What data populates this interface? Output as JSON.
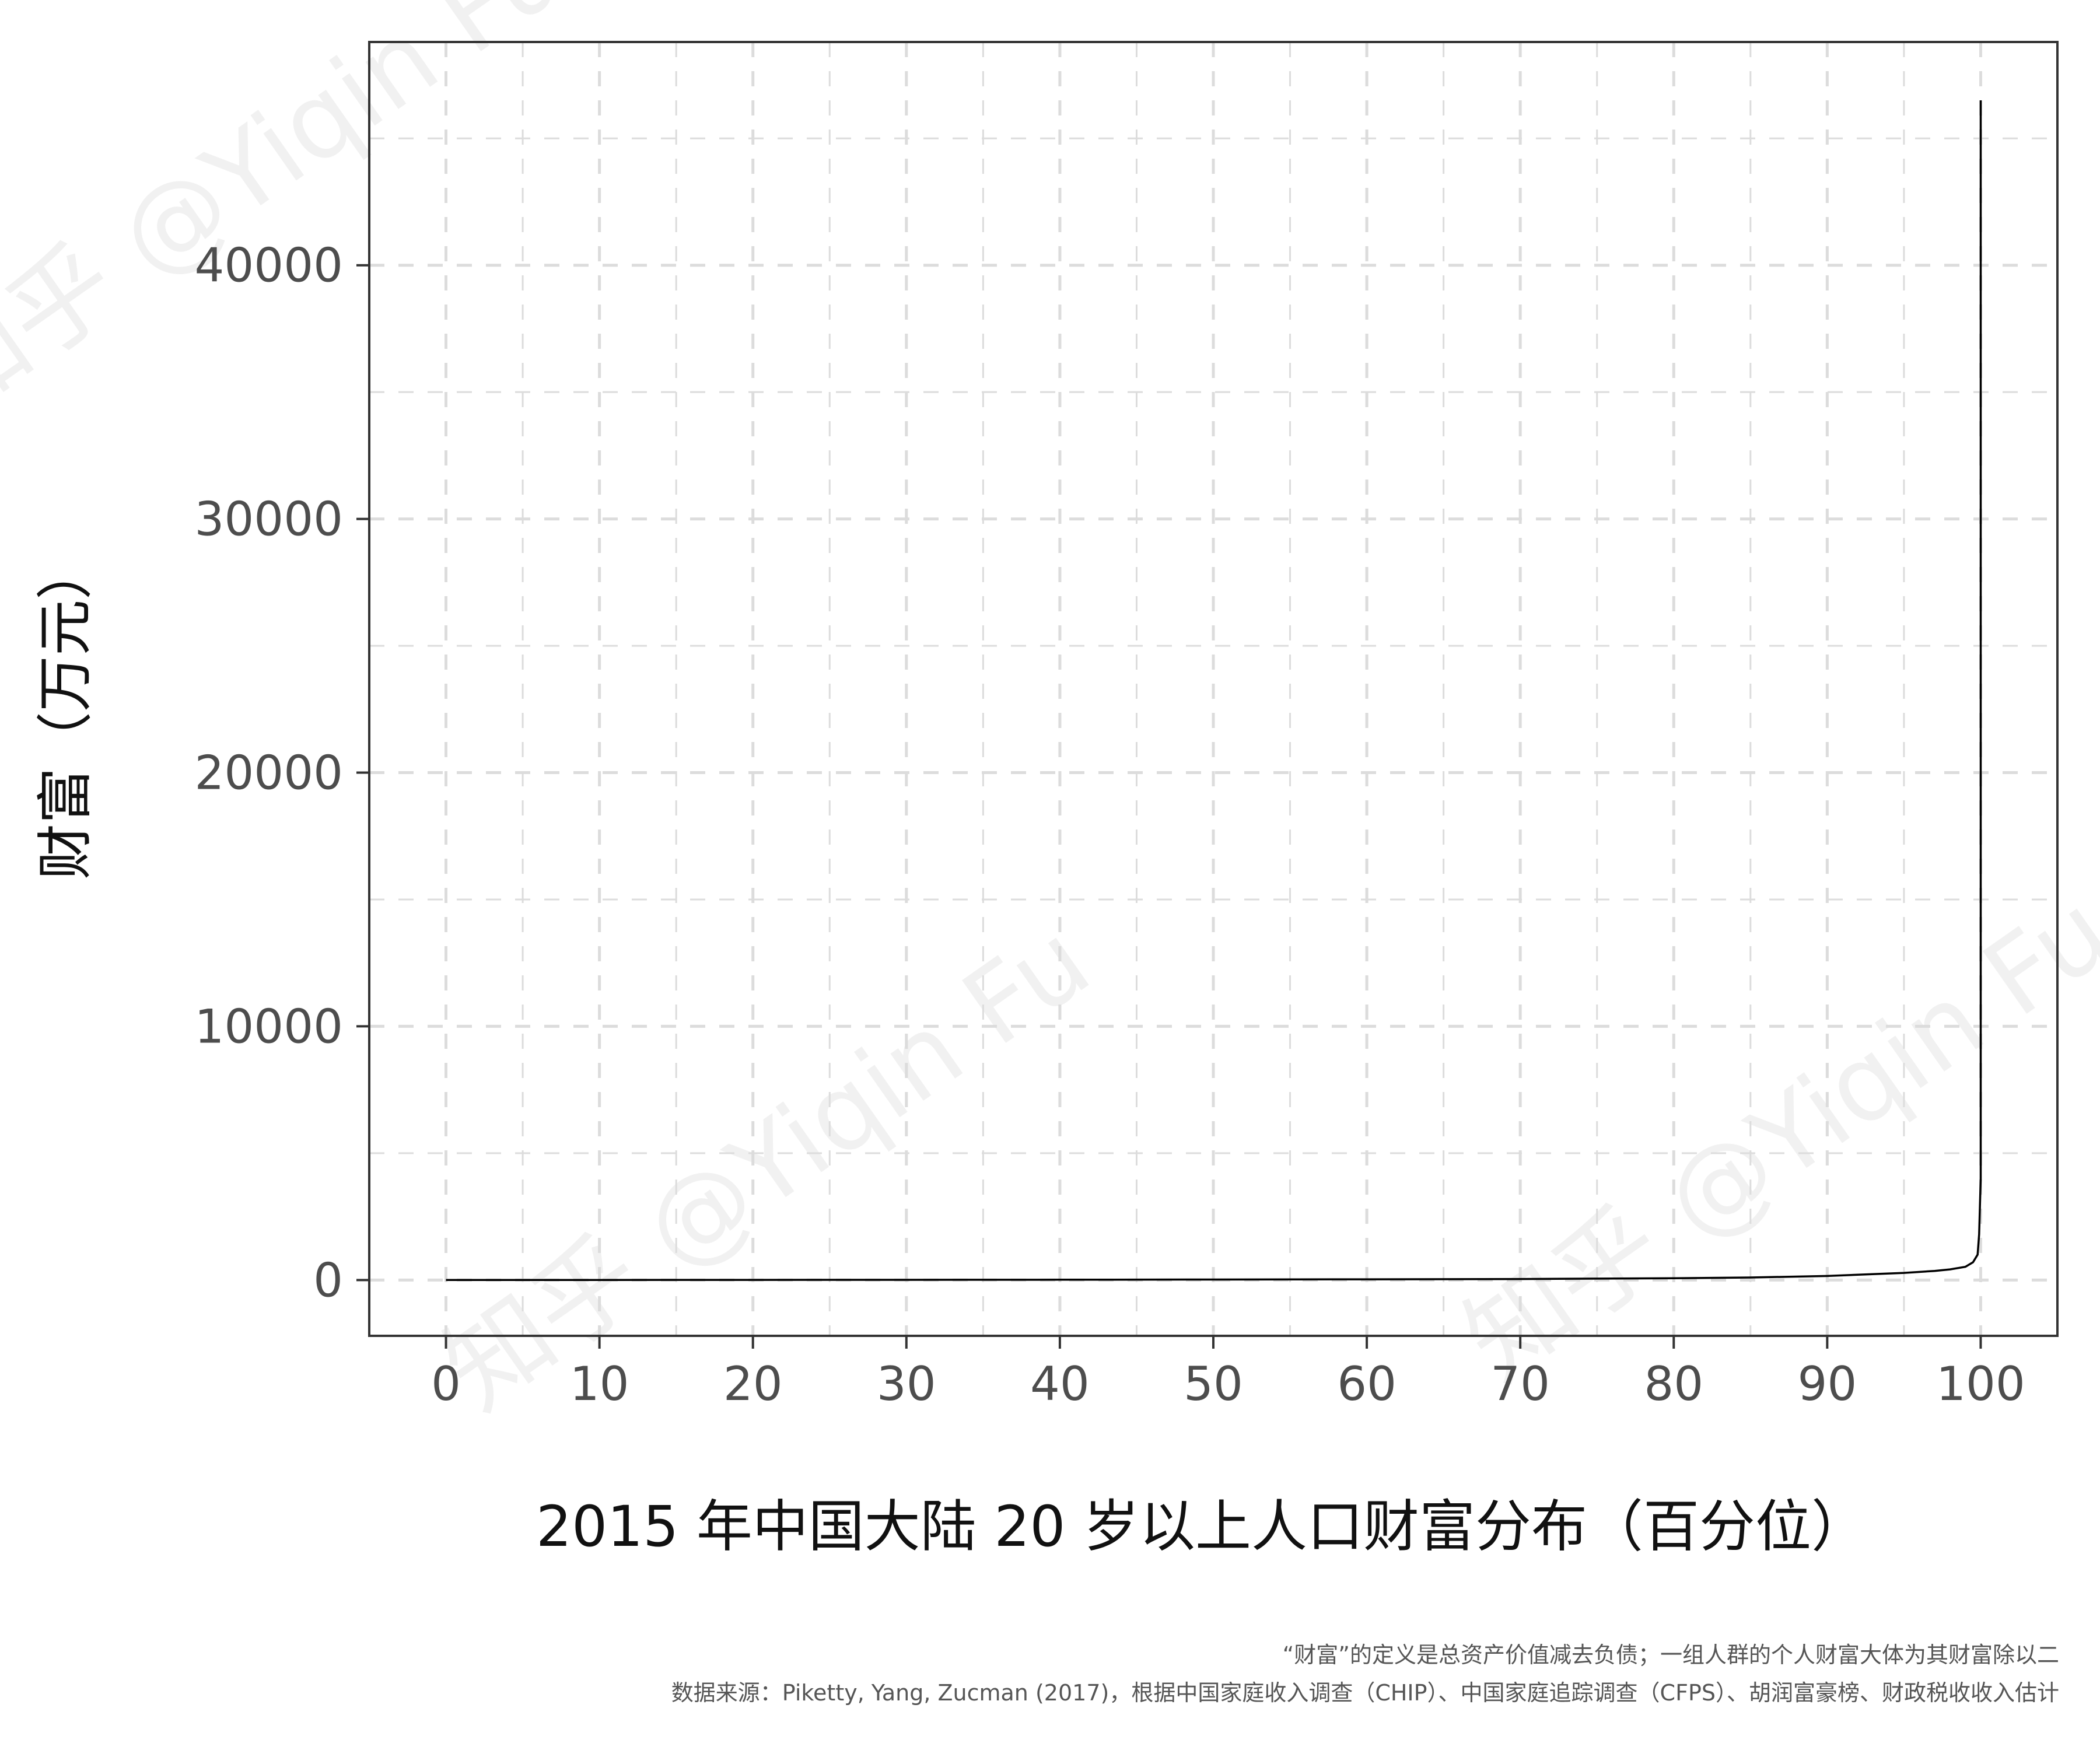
{
  "chart_data": {
    "type": "line",
    "title": "",
    "xlabel": "2015 年中国大陆 20 岁以上人口财富分布（百分位）",
    "ylabel": "财富（万元）",
    "xlim": [
      -5,
      105
    ],
    "ylim": [
      -2200,
      48800
    ],
    "x_ticks": [
      0,
      10,
      20,
      30,
      40,
      50,
      60,
      70,
      80,
      90,
      100
    ],
    "y_ticks": [
      0,
      10000,
      20000,
      30000,
      40000
    ],
    "grid": true,
    "legend": "none",
    "series": [
      {
        "x": [
          0,
          10,
          20,
          30,
          40,
          50,
          60,
          70,
          80,
          85,
          90,
          95,
          97,
          98,
          99,
          99.5,
          99.8,
          99.9,
          100,
          100
        ],
        "values": [
          0,
          2,
          5,
          8,
          12,
          18,
          27,
          40,
          70,
          100,
          160,
          280,
          360,
          420,
          520,
          700,
          1000,
          1800,
          4000,
          46500
        ]
      }
    ]
  },
  "caption": {
    "line1": "“财富”的定义是总资产价值减去负债；一组人群的个人财富大体为其财富除以二",
    "line2": "数据来源：Piketty, Yang, Zucman (2017)，根据中国家庭收入调查（CHIP）、中国家庭追踪调查（CFPS）、胡润富豪榜、财政税收收入估计"
  },
  "watermark": {
    "text": "知乎 @Yiqin Fu",
    "color": "#000000"
  },
  "colors": {
    "line": "#000000",
    "grid": "#dcdcdc",
    "panel_border": "#333333",
    "tick_label": "#4d4d4d"
  }
}
